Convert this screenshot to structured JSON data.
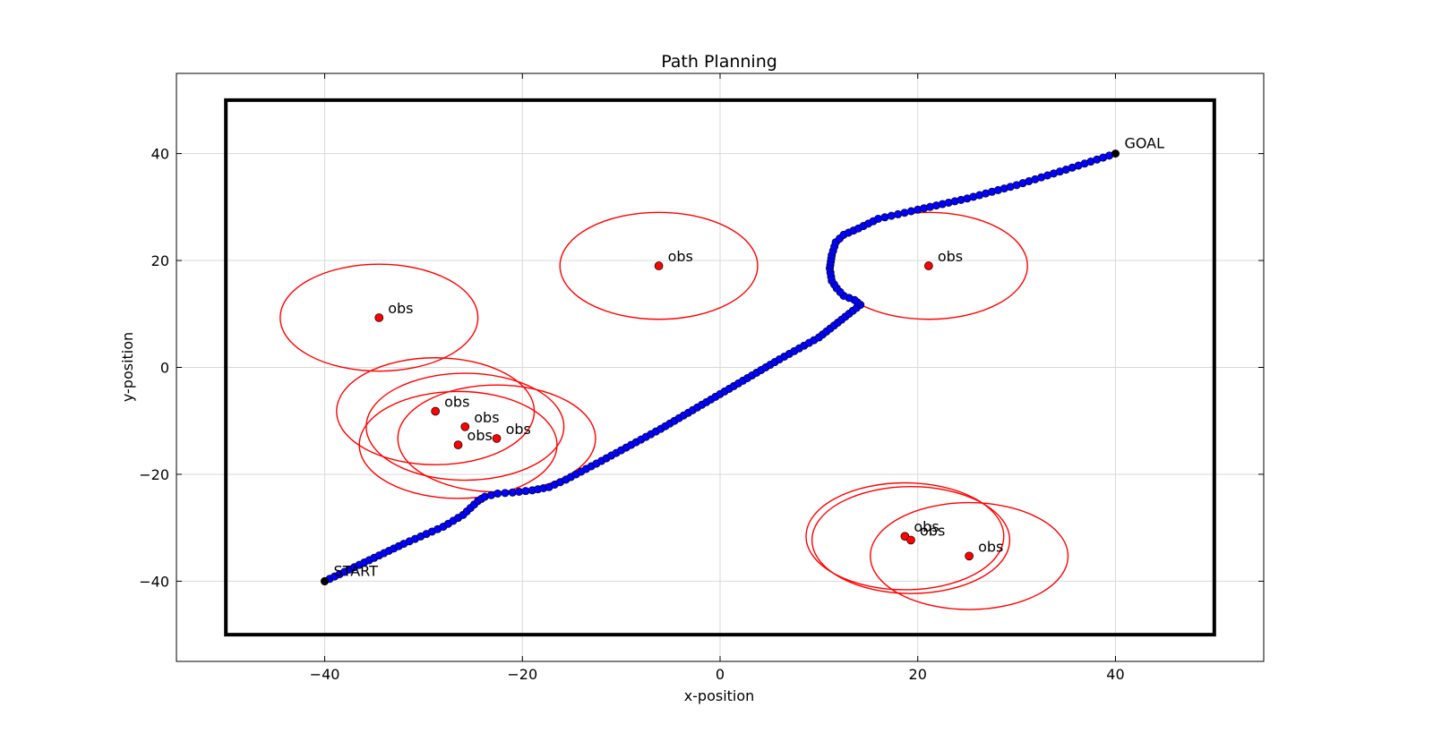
{
  "chart_data": {
    "type": "scatter",
    "title": "Path Planning",
    "xlabel": "x-position",
    "ylabel": "y-position",
    "xlim": [
      -55,
      55
    ],
    "ylim": [
      -55,
      55
    ],
    "x_ticks": [
      -40,
      -20,
      0,
      20,
      40
    ],
    "y_ticks": [
      -40,
      -20,
      0,
      20,
      40
    ],
    "x_tick_labels": [
      "−40",
      "−20",
      "0",
      "20",
      "40"
    ],
    "y_tick_labels": [
      "−40",
      "−20",
      "0",
      "20",
      "40"
    ],
    "grid": true,
    "boundary": {
      "x": [
        -50,
        50
      ],
      "y": [
        -50,
        50
      ]
    },
    "start": {
      "x": -40,
      "y": -40,
      "label": "START"
    },
    "goal": {
      "x": 40,
      "y": 40,
      "label": "GOAL"
    },
    "obstacle_radius": 10,
    "obstacles": [
      {
        "x": -34.5,
        "y": 9.3,
        "label": "obs"
      },
      {
        "x": -6.2,
        "y": 19.0,
        "label": "obs"
      },
      {
        "x": 21.1,
        "y": 19.0,
        "label": "obs"
      },
      {
        "x": -28.8,
        "y": -8.2,
        "label": "obs"
      },
      {
        "x": -25.8,
        "y": -11.1,
        "label": "obs"
      },
      {
        "x": -22.6,
        "y": -13.3,
        "label": "obs"
      },
      {
        "x": -26.5,
        "y": -14.5,
        "label": "obs"
      },
      {
        "x": 18.7,
        "y": -31.6,
        "label": "obs"
      },
      {
        "x": 19.3,
        "y": -32.3,
        "label": "obs"
      },
      {
        "x": 25.2,
        "y": -35.3,
        "label": "obs"
      }
    ],
    "path_waypoints": [
      [
        -40,
        -40
      ],
      [
        -36,
        -36.5
      ],
      [
        -32,
        -33
      ],
      [
        -28,
        -29.8
      ],
      [
        -26,
        -27.6
      ],
      [
        -24.5,
        -25
      ],
      [
        -23.8,
        -24.2
      ],
      [
        -22.5,
        -23.6
      ],
      [
        -21,
        -23.4
      ],
      [
        -19,
        -23
      ],
      [
        -17.3,
        -22.4
      ],
      [
        -15.6,
        -21
      ],
      [
        -12,
        -17.5
      ],
      [
        -6,
        -11.5
      ],
      [
        0,
        -5
      ],
      [
        6,
        1.5
      ],
      [
        10,
        5.6
      ],
      [
        14.2,
        11.7
      ],
      [
        13.6,
        12.6
      ],
      [
        12.5,
        13.4
      ],
      [
        11.8,
        14.8
      ],
      [
        11.3,
        16.2
      ],
      [
        11.1,
        18.5
      ],
      [
        11.3,
        21.0
      ],
      [
        11.7,
        23.4
      ],
      [
        12.5,
        24.8
      ],
      [
        14,
        26
      ],
      [
        16,
        27.8
      ],
      [
        20,
        29.5
      ],
      [
        25,
        31.6
      ],
      [
        30,
        34.1
      ],
      [
        35,
        37.0
      ],
      [
        40,
        40
      ]
    ],
    "colors": {
      "path": "#0000ff",
      "obstacle_point": "#ff0000",
      "obstacle_circle": "#ff0000",
      "endpoint": "#000000",
      "boundary": "#000000",
      "grid": "#d9d9d9"
    }
  }
}
